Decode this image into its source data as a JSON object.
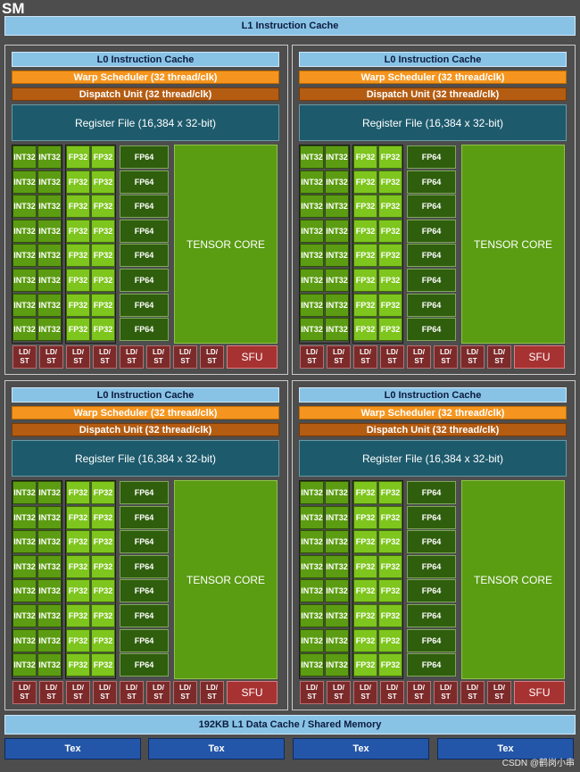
{
  "sm_title": "SM",
  "l1_instruction_cache": "L1 Instruction Cache",
  "quadrant": {
    "l0_cache": "L0 Instruction Cache",
    "warp_scheduler": "Warp Scheduler (32 thread/clk)",
    "dispatch_unit": "Dispatch Unit (32 thread/clk)",
    "register_file": "Register File (16,384 x 32-bit)",
    "int32": "INT32",
    "fp32": "FP32",
    "fp64": "FP64",
    "tensor_core": "TENSOR CORE",
    "ld": "LD/",
    "st": "ST",
    "sfu": "SFU"
  },
  "l1_data_cache": "192KB L1 Data Cache / Shared Memory",
  "tex": "Tex",
  "watermark": "CSDN @鹤岗小串",
  "colors": {
    "background": "#4d4d4d",
    "l1_blue": "#88c3e6",
    "warp_orange": "#f5951f",
    "dispatch_brown": "#b45c12",
    "register_teal": "#1d5a6c",
    "int32_green": "#5c9c12",
    "fp32_green": "#7ec51e",
    "fp64_green": "#2f5e0d",
    "tensor_green": "#5a9c12",
    "ldst_red": "#7d2a2a",
    "sfu_red": "#a73232",
    "tex_blue": "#2356a8"
  }
}
